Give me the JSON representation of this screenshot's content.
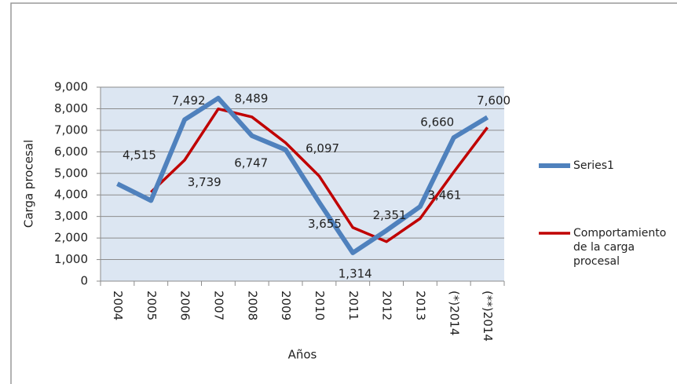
{
  "chart_data": {
    "type": "line",
    "xlabel": "Años",
    "ylabel": "Carga procesal",
    "categories": [
      "2004",
      "2005",
      "2006",
      "2007",
      "2008",
      "2009",
      "2010",
      "2011",
      "2012",
      "2013",
      "(*)2014",
      "(**)2014"
    ],
    "series": [
      {
        "name": "Series1",
        "color": "#4f81bd",
        "values": [
          4515,
          3739,
          7492,
          8489,
          6747,
          6097,
          3655,
          1314,
          2351,
          3461,
          6660,
          7600
        ],
        "value_labels": [
          "4,515",
          "3,739",
          "7,492",
          "8,489",
          "6,747",
          "6,097",
          "3,655",
          "1,314",
          "2,351",
          "3,461",
          "6,660",
          "7,600"
        ]
      },
      {
        "name": "Comportamiento de la carga procesal",
        "color": "#c00000",
        "values": [
          null,
          4127,
          5616,
          7991,
          7618,
          6422,
          4876,
          2485,
          1833,
          2906,
          5061,
          7130
        ]
      }
    ],
    "ylim": [
      0,
      9000
    ],
    "yticks": [
      0,
      {
        "value": 1000,
        "label": "1,000"
      },
      {
        "value": 2000,
        "label": "2,000"
      },
      {
        "value": 3000,
        "label": "3,000"
      },
      {
        "value": 4000,
        "label": "4,000"
      },
      {
        "value": 5000,
        "label": "5,000"
      },
      {
        "value": 6000,
        "label": "6,000"
      },
      {
        "value": 7000,
        "label": "7,000"
      },
      {
        "value": 8000,
        "label": "8,000"
      },
      {
        "value": 9000,
        "label": "9,000"
      }
    ],
    "grid": true
  }
}
